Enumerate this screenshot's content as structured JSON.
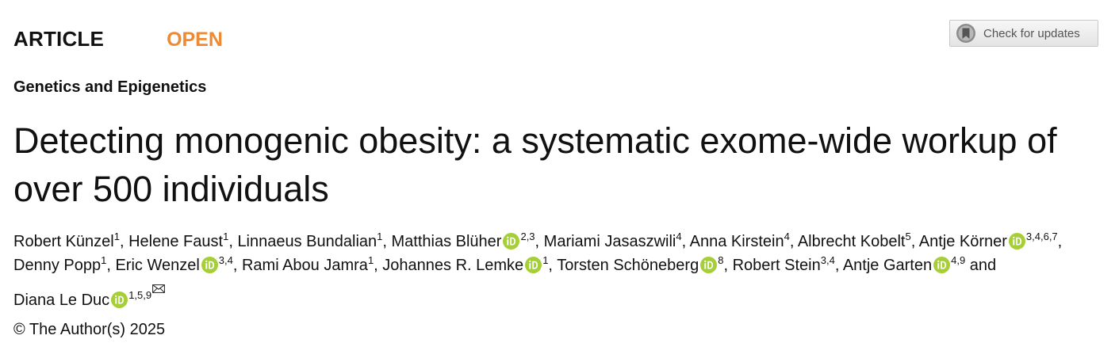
{
  "header": {
    "article_type": "ARTICLE",
    "access_badge": "OPEN",
    "check_updates_label": "Check for updates",
    "check_updates_icon": "bookmark-circle-icon"
  },
  "subject": "Genetics and Epigenetics",
  "title": "Detecting monogenic obesity: a systematic exome-wide workup of over 500 individuals",
  "authors": [
    {
      "name": "Robert Künzel",
      "aff": "1",
      "orcid": false
    },
    {
      "name": "Helene Faust",
      "aff": "1",
      "orcid": false
    },
    {
      "name": "Linnaeus Bundalian",
      "aff": "1",
      "orcid": false
    },
    {
      "name": "Matthias Blüher",
      "aff": "2,3",
      "orcid": true
    },
    {
      "name": "Mariami Jasaszwili",
      "aff": "4",
      "orcid": false
    },
    {
      "name": "Anna Kirstein",
      "aff": "4",
      "orcid": false
    },
    {
      "name": "Albrecht Kobelt",
      "aff": "5",
      "orcid": false
    },
    {
      "name": "Antje Körner",
      "aff": "3,4,6,7",
      "orcid": true
    },
    {
      "name": "Denny Popp",
      "aff": "1",
      "orcid": false
    },
    {
      "name": "Eric Wenzel",
      "aff": "3,4",
      "orcid": true
    },
    {
      "name": "Rami Abou Jamra",
      "aff": "1",
      "orcid": false
    },
    {
      "name": "Johannes R. Lemke",
      "aff": "1",
      "orcid": true
    },
    {
      "name": "Torsten Schöneberg",
      "aff": "8",
      "orcid": true
    },
    {
      "name": "Robert Stein",
      "aff": "3,4",
      "orcid": false
    },
    {
      "name": "Antje Garten",
      "aff": "4,9",
      "orcid": true
    },
    {
      "name": "Diana Le Duc",
      "aff": "1,5,9",
      "orcid": true,
      "corresponding": true
    }
  ],
  "author_separator": ", ",
  "author_final_separator": " and ",
  "copyright": "© The Author(s) 2025",
  "colors": {
    "open_accent": "#ef8a33",
    "orcid_green": "#a6ce39",
    "text": "#111111"
  }
}
